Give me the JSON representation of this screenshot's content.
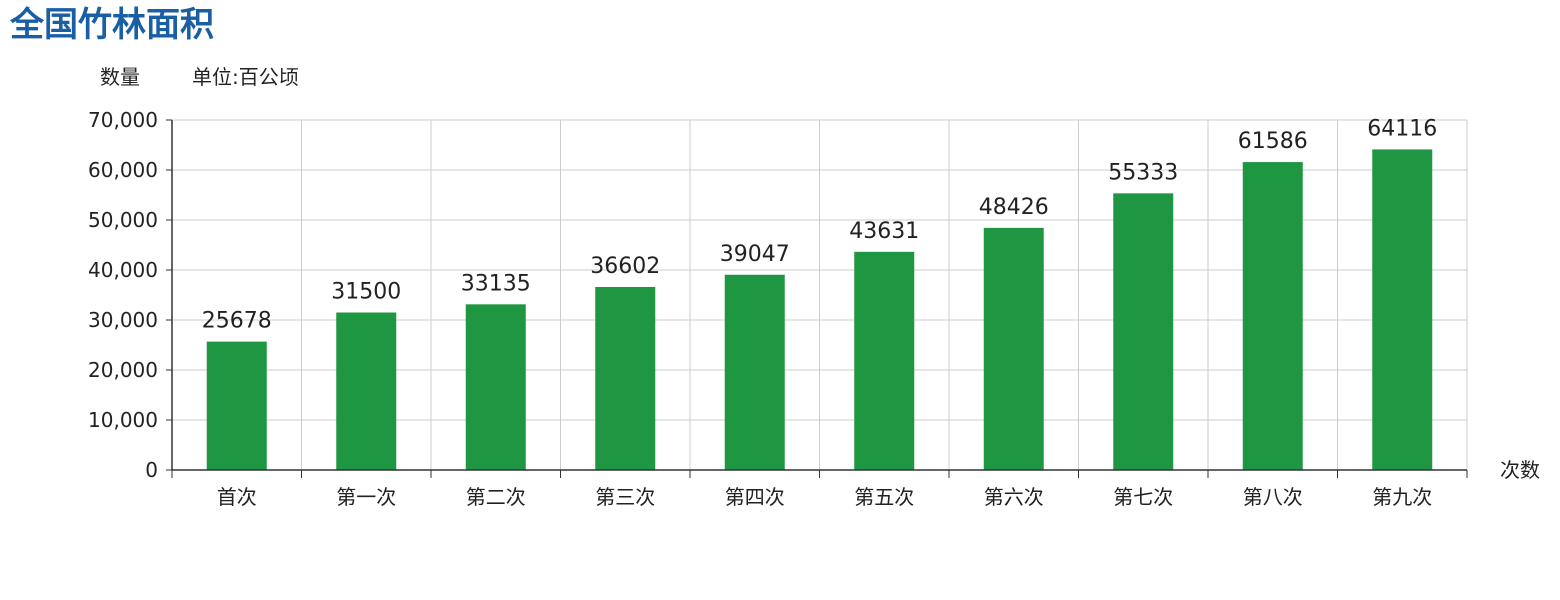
{
  "page": {
    "title": "全国竹林面积"
  },
  "chart_data": {
    "type": "bar",
    "title": "全国竹林面积",
    "ylabel": "数量",
    "unit": "单位:百公顷",
    "xlabel": "次数",
    "categories": [
      "首次",
      "第一次",
      "第二次",
      "第三次",
      "第四次",
      "第五次",
      "第六次",
      "第七次",
      "第八次",
      "第九次"
    ],
    "values": [
      25678,
      31500,
      33135,
      36602,
      39047,
      43631,
      48426,
      55333,
      61586,
      64116
    ],
    "data_labels": [
      "25678",
      "31500",
      "33135",
      "36602",
      "39047",
      "43631",
      "48426",
      "55333",
      "61586",
      "64116"
    ],
    "ylim": [
      0,
      70000
    ],
    "y_ticks": [
      0,
      10000,
      20000,
      30000,
      40000,
      50000,
      60000,
      70000
    ],
    "y_tick_labels": [
      "0",
      "10,000",
      "20,000",
      "30,000",
      "40,000",
      "50,000",
      "60,000",
      "70,000"
    ],
    "grid": true,
    "legend": "none",
    "colors": {
      "bar": "#1f9641",
      "title": "#1a5ea3",
      "grid": "#cccccc",
      "axis": "#333333",
      "text": "#222222"
    }
  }
}
